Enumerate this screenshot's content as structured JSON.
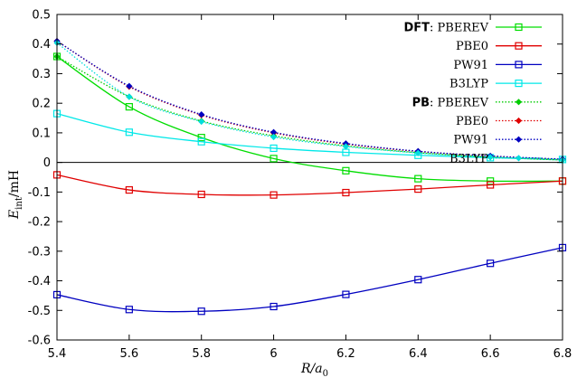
{
  "chart_data": {
    "type": "line",
    "xlabel": {
      "main": "R/a",
      "sub": "0"
    },
    "ylabel": {
      "main": "E",
      "sub": "int",
      "unit": "/mH"
    },
    "xlim": [
      5.4,
      6.8
    ],
    "ylim": [
      -0.6,
      0.5
    ],
    "xticks": [
      "5.4",
      "5.6",
      "5.8",
      "6",
      "6.2",
      "6.4",
      "6.6",
      "6.8"
    ],
    "yticks": [
      "-0.6",
      "-0.5",
      "-0.4",
      "-0.3",
      "-0.2",
      "-0.1",
      "0",
      "0.1",
      "0.2",
      "0.3",
      "0.4",
      "0.5"
    ],
    "grid": false,
    "zero_line": true,
    "legend_position": "top-right",
    "x": [
      5.4,
      5.6,
      5.8,
      6.0,
      6.2,
      6.4,
      6.6,
      6.8
    ],
    "series": [
      {
        "group": "DFT",
        "name": "PBEREV",
        "color": "#00dd00",
        "marker": "open-square",
        "line": "solid",
        "values": [
          0.358,
          0.188,
          0.084,
          0.013,
          -0.028,
          -0.055,
          -0.063,
          -0.063
        ]
      },
      {
        "group": "",
        "name": "PBE0",
        "color": "#e00000",
        "marker": "open-square",
        "line": "solid",
        "values": [
          -0.042,
          -0.093,
          -0.108,
          -0.11,
          -0.102,
          -0.09,
          -0.076,
          -0.063
        ]
      },
      {
        "group": "",
        "name": "PW91",
        "color": "#0000c0",
        "marker": "open-square",
        "line": "solid",
        "values": [
          -0.447,
          -0.497,
          -0.503,
          -0.487,
          -0.446,
          -0.396,
          -0.341,
          -0.288
        ]
      },
      {
        "group": "",
        "name": "B3LYP",
        "color": "#00e8e8",
        "marker": "open-square",
        "line": "solid",
        "values": [
          0.165,
          0.102,
          0.07,
          0.048,
          0.034,
          0.024,
          0.016,
          0.01
        ]
      },
      {
        "group": "PB",
        "name": "PBEREV",
        "color": "#00cc00",
        "marker": "filled-diamond",
        "line": "dotted",
        "values": [
          0.358,
          0.222,
          0.14,
          0.09,
          0.056,
          0.033,
          0.018,
          0.008
        ]
      },
      {
        "group": "",
        "name": "PBE0",
        "color": "#e00000",
        "marker": "filled-diamond",
        "line": "dotted",
        "values": [
          0.41,
          0.256,
          0.16,
          0.1,
          0.062,
          0.037,
          0.021,
          0.01
        ]
      },
      {
        "group": "",
        "name": "PW91",
        "color": "#0000c0",
        "marker": "filled-diamond",
        "line": "dotted",
        "values": [
          0.41,
          0.258,
          0.162,
          0.102,
          0.064,
          0.038,
          0.022,
          0.011
        ]
      },
      {
        "group": "",
        "name": "B3LYP",
        "color": "#00dddd",
        "marker": "filled-diamond",
        "line": "dotted",
        "values": [
          0.404,
          0.222,
          0.138,
          0.086,
          0.054,
          0.032,
          0.018,
          0.008
        ]
      }
    ]
  }
}
